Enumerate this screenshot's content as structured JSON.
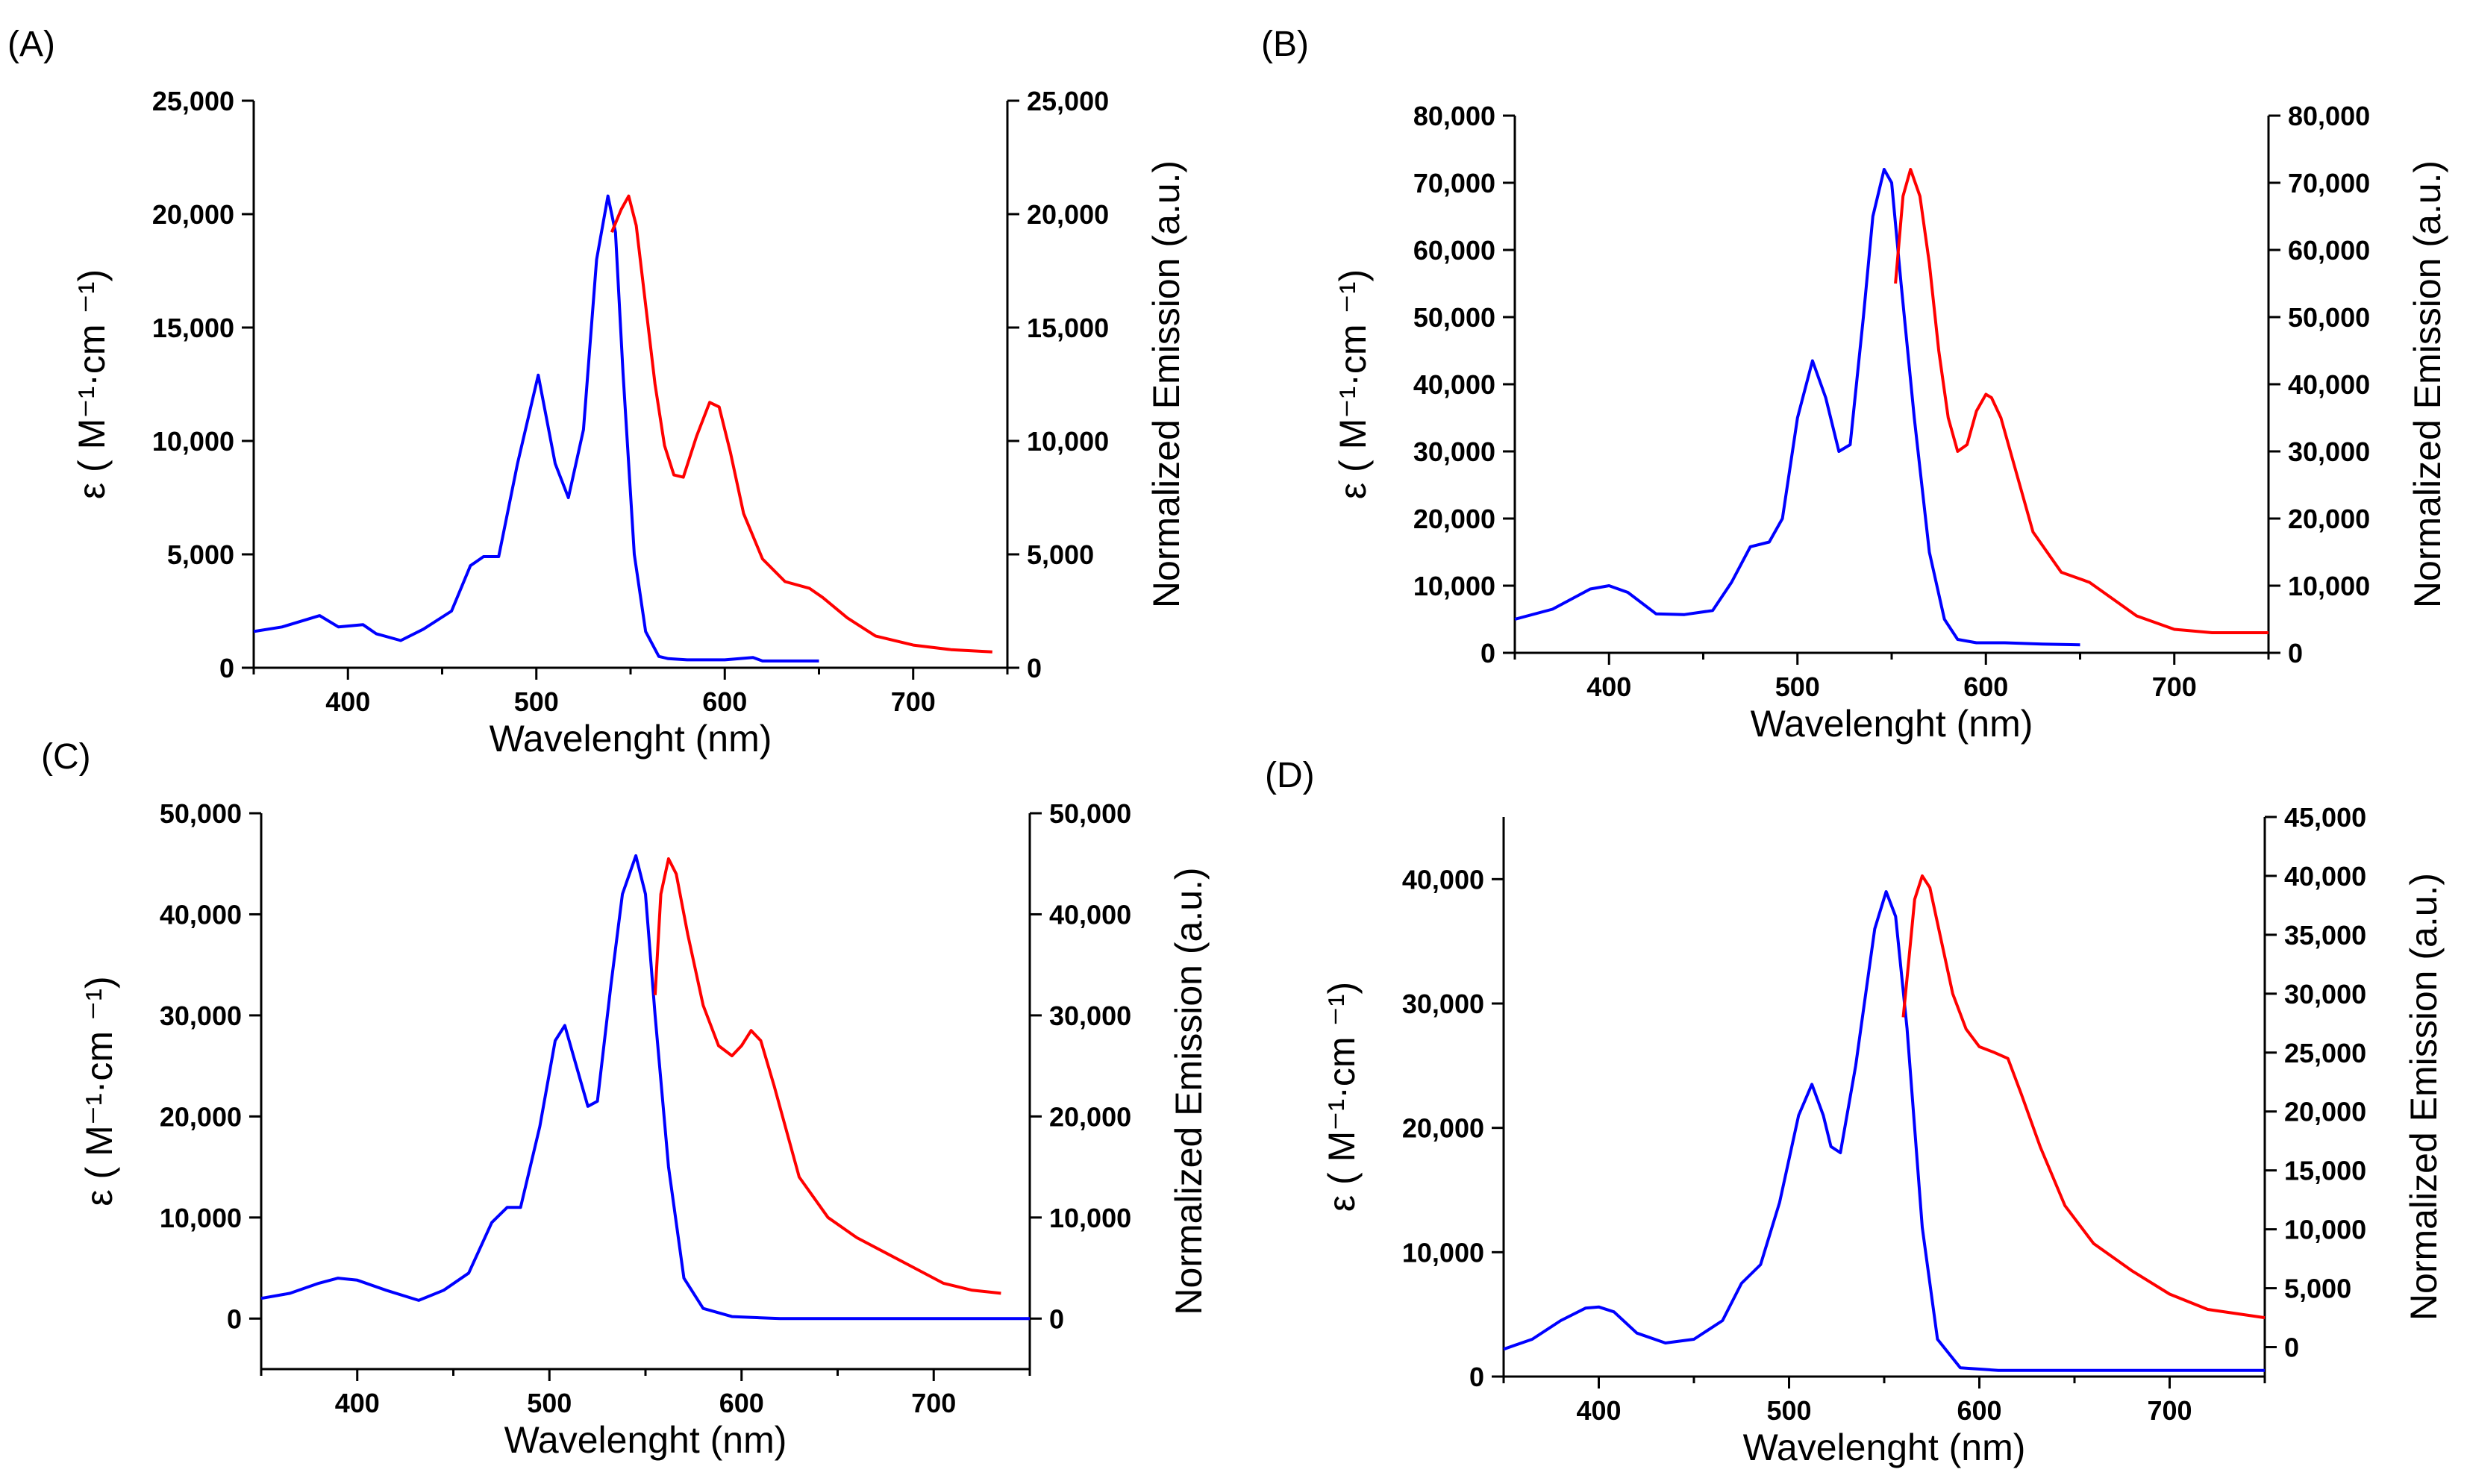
{
  "colors": {
    "absorption": "#0000ff",
    "emission": "#ff0000",
    "axis": "#000000"
  },
  "chart_data": [
    {
      "panel": "(A)",
      "type": "line",
      "xlabel": "Wavelenght (nm)",
      "ylabel_left": "ε ( M⁻¹·cm ⁻¹)",
      "ylabel_right": "Normalized Emission (a.u.)",
      "xlim": [
        350,
        750
      ],
      "ylim_left": [
        0,
        25000
      ],
      "ylim_right": [
        0,
        25000
      ],
      "xticks": [
        400,
        500,
        600,
        700
      ],
      "xtick_labels": [
        "400",
        "500",
        "600",
        "700"
      ],
      "yticks_left": [
        0,
        5000,
        10000,
        15000,
        20000,
        25000
      ],
      "ytick_labels_left": [
        "0",
        "5,000",
        "10,000",
        "15,000",
        "20,000",
        "25,000"
      ],
      "yticks_right": [
        0,
        5000,
        10000,
        15000,
        20000,
        25000
      ],
      "ytick_labels_right": [
        "0",
        "5,000",
        "10,000",
        "15,000",
        "20,000",
        "25,000"
      ],
      "series": [
        {
          "name": "absorption",
          "axis": "left",
          "x": [
            350,
            365,
            385,
            395,
            408,
            415,
            428,
            440,
            455,
            465,
            472,
            480,
            490,
            501,
            510,
            517,
            525,
            532,
            538,
            542,
            546,
            552,
            558,
            565,
            570,
            580,
            600,
            615,
            620,
            650
          ],
          "y": [
            1600,
            1800,
            2300,
            1800,
            1900,
            1500,
            1200,
            1700,
            2500,
            4500,
            4900,
            4900,
            9000,
            12900,
            9000,
            7500,
            10500,
            18000,
            20800,
            19200,
            13000,
            5000,
            1600,
            500,
            400,
            350,
            350,
            450,
            300,
            300
          ]
        },
        {
          "name": "emission",
          "axis": "right",
          "x": [
            540,
            545,
            549,
            553,
            558,
            563,
            568,
            573,
            578,
            585,
            592,
            597,
            603,
            610,
            620,
            632,
            645,
            652,
            665,
            680,
            700,
            720,
            742
          ],
          "y": [
            19200,
            20200,
            20800,
            19500,
            16000,
            12500,
            9800,
            8500,
            8400,
            10200,
            11700,
            11500,
            9500,
            6800,
            4800,
            3800,
            3500,
            3100,
            2200,
            1400,
            1000,
            800,
            700
          ]
        }
      ]
    },
    {
      "panel": "(B)",
      "type": "line",
      "xlabel": "Wavelenght (nm)",
      "ylabel_left": "ε ( M⁻¹·cm ⁻¹)",
      "ylabel_right": "Normalized Emission (a.u.)",
      "xlim": [
        350,
        750
      ],
      "ylim_left": [
        0,
        80000
      ],
      "ylim_right": [
        0,
        80000
      ],
      "xticks": [
        400,
        500,
        600,
        700
      ],
      "xtick_labels": [
        "400",
        "500",
        "600",
        "700"
      ],
      "yticks_left": [
        0,
        10000,
        20000,
        30000,
        40000,
        50000,
        60000,
        70000,
        80000
      ],
      "ytick_labels_left": [
        "0",
        "10,000",
        "20,000",
        "30,000",
        "40,000",
        "50,000",
        "60,000",
        "70,000",
        "80,000"
      ],
      "yticks_right": [
        0,
        10000,
        20000,
        30000,
        40000,
        50000,
        60000,
        70000,
        80000
      ],
      "ytick_labels_right": [
        "0",
        "10,000",
        "20,000",
        "30,000",
        "40,000",
        "50,000",
        "60,000",
        "70,000",
        "80,000"
      ],
      "series": [
        {
          "name": "absorption",
          "axis": "left",
          "x": [
            350,
            370,
            390,
            400,
            410,
            425,
            440,
            455,
            465,
            475,
            485,
            492,
            500,
            508,
            515,
            522,
            528,
            535,
            540,
            546,
            550,
            555,
            562,
            570,
            578,
            585,
            595,
            610,
            630,
            650
          ],
          "y": [
            5000,
            6500,
            9500,
            10000,
            9000,
            5800,
            5700,
            6300,
            10500,
            15800,
            16500,
            20000,
            35000,
            43500,
            38000,
            30000,
            31000,
            50000,
            65000,
            72000,
            70000,
            55000,
            35000,
            15000,
            5000,
            2000,
            1500,
            1500,
            1300,
            1200
          ]
        },
        {
          "name": "emission",
          "axis": "right",
          "x": [
            552,
            556,
            560,
            565,
            570,
            575,
            580,
            585,
            590,
            595,
            600,
            603,
            608,
            615,
            625,
            640,
            655,
            665,
            680,
            700,
            720,
            750
          ],
          "y": [
            55000,
            68000,
            72000,
            68000,
            58000,
            45000,
            35000,
            30000,
            31000,
            36000,
            38500,
            38000,
            35000,
            28000,
            18000,
            12000,
            10500,
            8500,
            5500,
            3500,
            3000,
            3000
          ]
        }
      ]
    },
    {
      "panel": "(C)",
      "type": "line",
      "xlabel": "Wavelenght (nm)",
      "ylabel_left": "ε ( M⁻¹·cm ⁻¹)",
      "ylabel_right": "Normalized Emission (a.u.)",
      "xlim": [
        350,
        750
      ],
      "ylim_left": [
        -5000,
        50000
      ],
      "ylim_right": [
        -5000,
        50000
      ],
      "xticks": [
        400,
        500,
        600,
        700
      ],
      "xtick_labels": [
        "400",
        "500",
        "600",
        "700"
      ],
      "yticks_left": [
        0,
        10000,
        20000,
        30000,
        40000,
        50000
      ],
      "ytick_labels_left": [
        "0",
        "10,000",
        "20,000",
        "30,000",
        "40,000",
        "50,000"
      ],
      "yticks_right": [
        0,
        10000,
        20000,
        30000,
        40000,
        50000
      ],
      "ytick_labels_right": [
        "0",
        "10,000",
        "20,000",
        "30,000",
        "40,000",
        "50,000"
      ],
      "series": [
        {
          "name": "absorption",
          "axis": "left",
          "x": [
            350,
            365,
            380,
            390,
            400,
            415,
            432,
            445,
            458,
            470,
            478,
            485,
            495,
            503,
            508,
            514,
            520,
            525,
            532,
            538,
            545,
            550,
            555,
            562,
            570,
            580,
            595,
            620,
            750
          ],
          "y": [
            2000,
            2500,
            3500,
            4000,
            3800,
            2800,
            1800,
            2800,
            4500,
            9500,
            11000,
            11000,
            19000,
            27500,
            29000,
            25000,
            21000,
            21500,
            33000,
            42000,
            45800,
            42000,
            30000,
            15000,
            4000,
            1000,
            200,
            0,
            0
          ]
        },
        {
          "name": "emission",
          "axis": "right",
          "x": [
            555,
            558,
            562,
            566,
            572,
            580,
            588,
            595,
            600,
            605,
            610,
            617,
            630,
            645,
            660,
            675,
            690,
            705,
            720,
            735
          ],
          "y": [
            32000,
            42000,
            45500,
            44000,
            38000,
            31000,
            27000,
            26000,
            27000,
            28500,
            27500,
            23000,
            14000,
            10000,
            8000,
            6500,
            5000,
            3500,
            2800,
            2500
          ]
        }
      ]
    },
    {
      "panel": "(D)",
      "type": "line",
      "xlabel": "Wavelenght (nm)",
      "ylabel_left": "ε ( M⁻¹·cm ⁻¹)",
      "ylabel_right": "Normalized Emission (a.u.)",
      "xlim": [
        350,
        750
      ],
      "ylim_left": [
        0,
        45000
      ],
      "ylim_right": [
        -2500,
        45000
      ],
      "xticks": [
        400,
        500,
        600,
        700
      ],
      "xtick_labels": [
        "400",
        "500",
        "600",
        "700"
      ],
      "yticks_left": [
        0,
        10000,
        20000,
        30000,
        40000
      ],
      "ytick_labels_left": [
        "0",
        "10,000",
        "20,000",
        "30,000",
        "40,000"
      ],
      "yticks_right": [
        0,
        5000,
        10000,
        15000,
        20000,
        25000,
        30000,
        35000,
        40000,
        45000
      ],
      "ytick_labels_right": [
        "0",
        "5,000",
        "10,000",
        "15,000",
        "20,000",
        "25,000",
        "30,000",
        "35,000",
        "40,000",
        "45,000"
      ],
      "series": [
        {
          "name": "absorption",
          "axis": "left",
          "x": [
            350,
            365,
            380,
            393,
            400,
            408,
            420,
            435,
            450,
            465,
            475,
            485,
            495,
            505,
            512,
            518,
            522,
            527,
            535,
            545,
            551,
            556,
            562,
            570,
            578,
            590,
            610,
            750
          ],
          "y": [
            2200,
            3000,
            4500,
            5500,
            5600,
            5200,
            3500,
            2700,
            3000,
            4500,
            7500,
            9000,
            14000,
            21000,
            23500,
            21000,
            18500,
            18000,
            25000,
            36000,
            39000,
            37000,
            28000,
            12000,
            3000,
            700,
            500,
            500
          ]
        },
        {
          "name": "emission",
          "axis": "right",
          "x": [
            560,
            563,
            566,
            570,
            574,
            580,
            586,
            593,
            600,
            608,
            615,
            622,
            632,
            645,
            660,
            680,
            700,
            720,
            750
          ],
          "y": [
            28000,
            33000,
            38000,
            40000,
            39000,
            34500,
            30000,
            27000,
            25500,
            25000,
            24500,
            21500,
            17000,
            12000,
            8800,
            6500,
            4500,
            3200,
            2500
          ]
        }
      ]
    }
  ]
}
